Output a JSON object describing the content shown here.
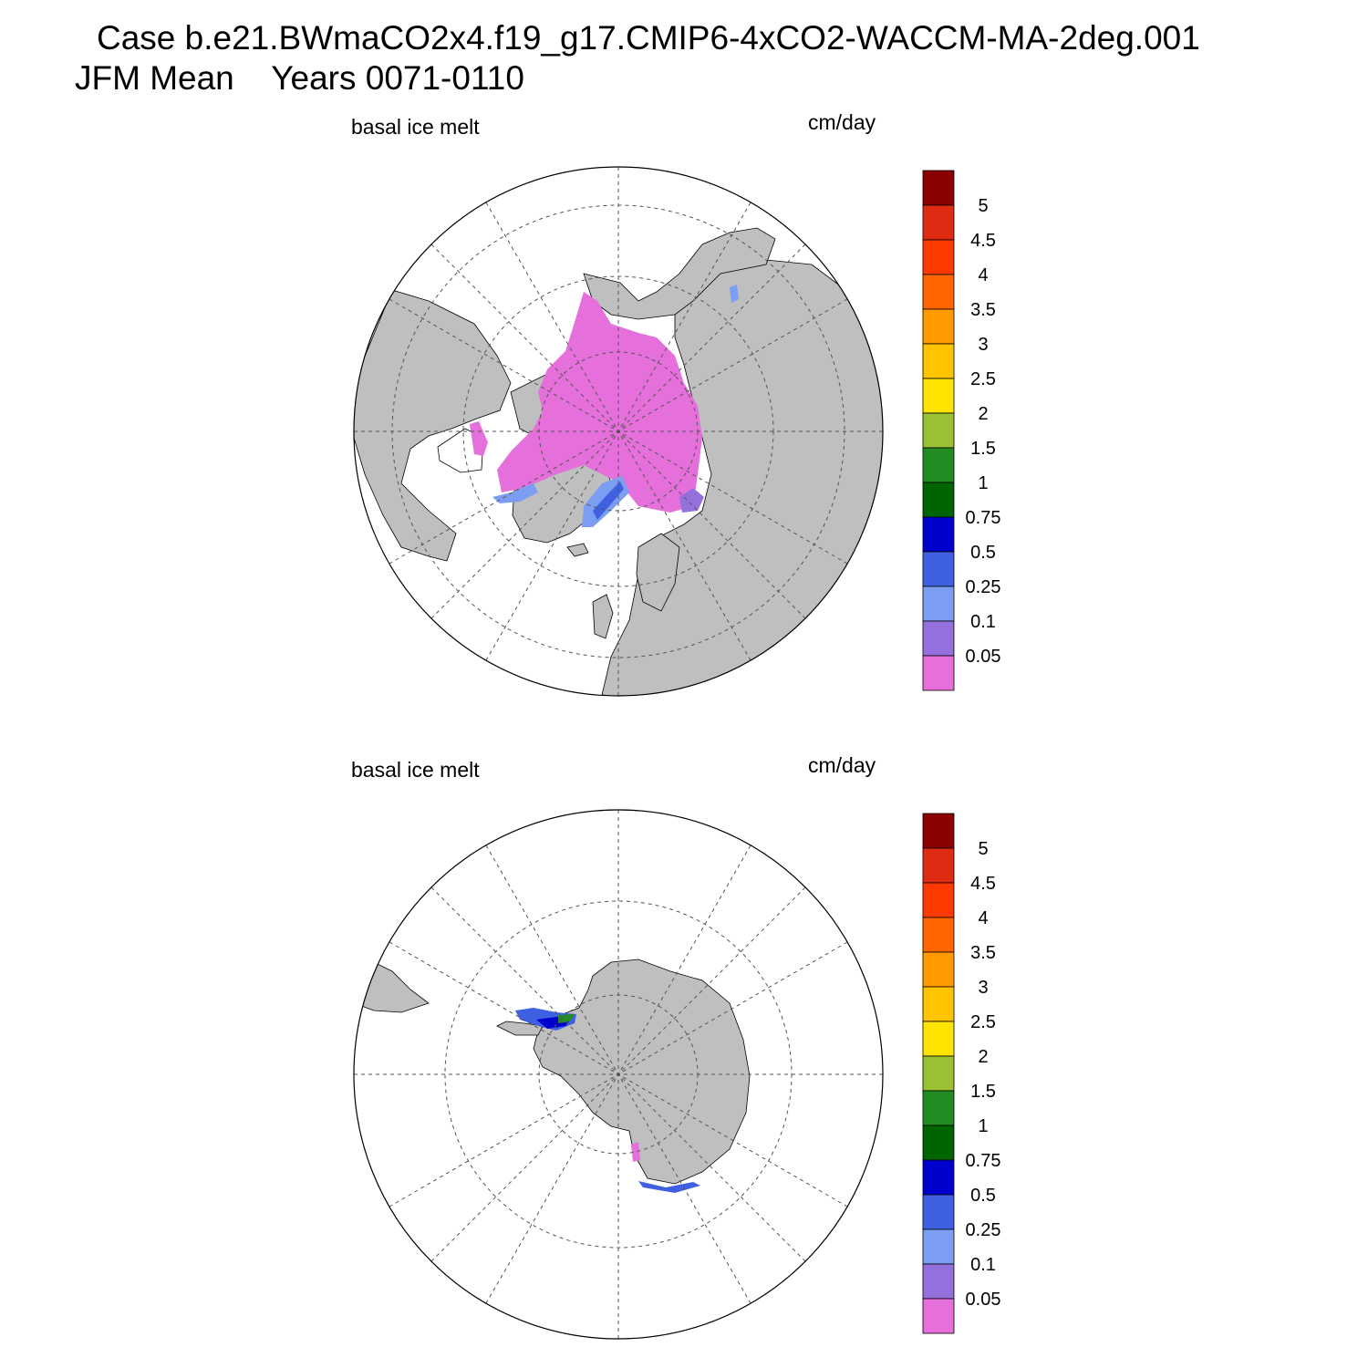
{
  "title": {
    "line1": "Case b.e21.BWmaCO2x4.f19_g17.CMIP6-4xCO2-WACCM-MA-2deg.001",
    "line2": "JFM Mean    Years 0071-0110"
  },
  "colors": {
    "land": "#bfbfbf",
    "ocean": "#ffffff",
    "grid": "#555555"
  },
  "colorbar": {
    "labels": [
      "5",
      "4.5",
      "4",
      "3.5",
      "3",
      "2.5",
      "2",
      "1.5",
      "1",
      "0.75",
      "0.5",
      "0.25",
      "0.1",
      "0.05"
    ],
    "colors": [
      "#8b0000",
      "#e02b13",
      "#ff3a00",
      "#ff6600",
      "#ff9a00",
      "#ffc300",
      "#ffe400",
      "#9ac033",
      "#228b22",
      "#006400",
      "#0000cd",
      "#3f60e0",
      "#7b9ef2",
      "#9370db",
      "#e56fdb"
    ]
  },
  "panels": [
    {
      "id": "north",
      "variable_label": "basal ice melt",
      "units_label": "cm/day",
      "hemisphere": "Northern Hemisphere polar stereographic"
    },
    {
      "id": "south",
      "variable_label": "basal ice melt",
      "units_label": "cm/day",
      "hemisphere": "Southern Hemisphere polar stereographic"
    }
  ]
}
